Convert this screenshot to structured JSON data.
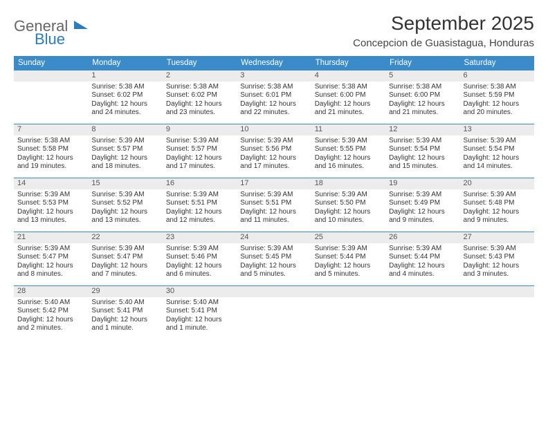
{
  "brand": {
    "general": "General",
    "blue": "Blue"
  },
  "title": "September 2025",
  "location": "Concepcion de Guasistagua, Honduras",
  "colors": {
    "header_bg": "#3b8bc9",
    "header_text": "#ffffff",
    "daynum_bg": "#ececec",
    "row_border": "#3b8bc9",
    "body_text": "#333333",
    "logo_blue": "#2b7bbf",
    "logo_gray": "#666666"
  },
  "weekdays": [
    "Sunday",
    "Monday",
    "Tuesday",
    "Wednesday",
    "Thursday",
    "Friday",
    "Saturday"
  ],
  "weeks": [
    {
      "nums": [
        "",
        "1",
        "2",
        "3",
        "4",
        "5",
        "6"
      ],
      "cells": [
        null,
        {
          "sunrise": "Sunrise: 5:38 AM",
          "sunset": "Sunset: 6:02 PM",
          "day1": "Daylight: 12 hours",
          "day2": "and 24 minutes."
        },
        {
          "sunrise": "Sunrise: 5:38 AM",
          "sunset": "Sunset: 6:02 PM",
          "day1": "Daylight: 12 hours",
          "day2": "and 23 minutes."
        },
        {
          "sunrise": "Sunrise: 5:38 AM",
          "sunset": "Sunset: 6:01 PM",
          "day1": "Daylight: 12 hours",
          "day2": "and 22 minutes."
        },
        {
          "sunrise": "Sunrise: 5:38 AM",
          "sunset": "Sunset: 6:00 PM",
          "day1": "Daylight: 12 hours",
          "day2": "and 21 minutes."
        },
        {
          "sunrise": "Sunrise: 5:38 AM",
          "sunset": "Sunset: 6:00 PM",
          "day1": "Daylight: 12 hours",
          "day2": "and 21 minutes."
        },
        {
          "sunrise": "Sunrise: 5:38 AM",
          "sunset": "Sunset: 5:59 PM",
          "day1": "Daylight: 12 hours",
          "day2": "and 20 minutes."
        }
      ]
    },
    {
      "nums": [
        "7",
        "8",
        "9",
        "10",
        "11",
        "12",
        "13"
      ],
      "cells": [
        {
          "sunrise": "Sunrise: 5:38 AM",
          "sunset": "Sunset: 5:58 PM",
          "day1": "Daylight: 12 hours",
          "day2": "and 19 minutes."
        },
        {
          "sunrise": "Sunrise: 5:39 AM",
          "sunset": "Sunset: 5:57 PM",
          "day1": "Daylight: 12 hours",
          "day2": "and 18 minutes."
        },
        {
          "sunrise": "Sunrise: 5:39 AM",
          "sunset": "Sunset: 5:57 PM",
          "day1": "Daylight: 12 hours",
          "day2": "and 17 minutes."
        },
        {
          "sunrise": "Sunrise: 5:39 AM",
          "sunset": "Sunset: 5:56 PM",
          "day1": "Daylight: 12 hours",
          "day2": "and 17 minutes."
        },
        {
          "sunrise": "Sunrise: 5:39 AM",
          "sunset": "Sunset: 5:55 PM",
          "day1": "Daylight: 12 hours",
          "day2": "and 16 minutes."
        },
        {
          "sunrise": "Sunrise: 5:39 AM",
          "sunset": "Sunset: 5:54 PM",
          "day1": "Daylight: 12 hours",
          "day2": "and 15 minutes."
        },
        {
          "sunrise": "Sunrise: 5:39 AM",
          "sunset": "Sunset: 5:54 PM",
          "day1": "Daylight: 12 hours",
          "day2": "and 14 minutes."
        }
      ]
    },
    {
      "nums": [
        "14",
        "15",
        "16",
        "17",
        "18",
        "19",
        "20"
      ],
      "cells": [
        {
          "sunrise": "Sunrise: 5:39 AM",
          "sunset": "Sunset: 5:53 PM",
          "day1": "Daylight: 12 hours",
          "day2": "and 13 minutes."
        },
        {
          "sunrise": "Sunrise: 5:39 AM",
          "sunset": "Sunset: 5:52 PM",
          "day1": "Daylight: 12 hours",
          "day2": "and 13 minutes."
        },
        {
          "sunrise": "Sunrise: 5:39 AM",
          "sunset": "Sunset: 5:51 PM",
          "day1": "Daylight: 12 hours",
          "day2": "and 12 minutes."
        },
        {
          "sunrise": "Sunrise: 5:39 AM",
          "sunset": "Sunset: 5:51 PM",
          "day1": "Daylight: 12 hours",
          "day2": "and 11 minutes."
        },
        {
          "sunrise": "Sunrise: 5:39 AM",
          "sunset": "Sunset: 5:50 PM",
          "day1": "Daylight: 12 hours",
          "day2": "and 10 minutes."
        },
        {
          "sunrise": "Sunrise: 5:39 AM",
          "sunset": "Sunset: 5:49 PM",
          "day1": "Daylight: 12 hours",
          "day2": "and 9 minutes."
        },
        {
          "sunrise": "Sunrise: 5:39 AM",
          "sunset": "Sunset: 5:48 PM",
          "day1": "Daylight: 12 hours",
          "day2": "and 9 minutes."
        }
      ]
    },
    {
      "nums": [
        "21",
        "22",
        "23",
        "24",
        "25",
        "26",
        "27"
      ],
      "cells": [
        {
          "sunrise": "Sunrise: 5:39 AM",
          "sunset": "Sunset: 5:47 PM",
          "day1": "Daylight: 12 hours",
          "day2": "and 8 minutes."
        },
        {
          "sunrise": "Sunrise: 5:39 AM",
          "sunset": "Sunset: 5:47 PM",
          "day1": "Daylight: 12 hours",
          "day2": "and 7 minutes."
        },
        {
          "sunrise": "Sunrise: 5:39 AM",
          "sunset": "Sunset: 5:46 PM",
          "day1": "Daylight: 12 hours",
          "day2": "and 6 minutes."
        },
        {
          "sunrise": "Sunrise: 5:39 AM",
          "sunset": "Sunset: 5:45 PM",
          "day1": "Daylight: 12 hours",
          "day2": "and 5 minutes."
        },
        {
          "sunrise": "Sunrise: 5:39 AM",
          "sunset": "Sunset: 5:44 PM",
          "day1": "Daylight: 12 hours",
          "day2": "and 5 minutes."
        },
        {
          "sunrise": "Sunrise: 5:39 AM",
          "sunset": "Sunset: 5:44 PM",
          "day1": "Daylight: 12 hours",
          "day2": "and 4 minutes."
        },
        {
          "sunrise": "Sunrise: 5:39 AM",
          "sunset": "Sunset: 5:43 PM",
          "day1": "Daylight: 12 hours",
          "day2": "and 3 minutes."
        }
      ]
    },
    {
      "nums": [
        "28",
        "29",
        "30",
        "",
        "",
        "",
        ""
      ],
      "cells": [
        {
          "sunrise": "Sunrise: 5:40 AM",
          "sunset": "Sunset: 5:42 PM",
          "day1": "Daylight: 12 hours",
          "day2": "and 2 minutes."
        },
        {
          "sunrise": "Sunrise: 5:40 AM",
          "sunset": "Sunset: 5:41 PM",
          "day1": "Daylight: 12 hours",
          "day2": "and 1 minute."
        },
        {
          "sunrise": "Sunrise: 5:40 AM",
          "sunset": "Sunset: 5:41 PM",
          "day1": "Daylight: 12 hours",
          "day2": "and 1 minute."
        },
        null,
        null,
        null,
        null
      ]
    }
  ]
}
